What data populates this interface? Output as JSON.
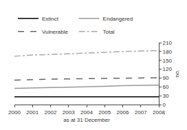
{
  "chart_data": {
    "type": "line",
    "x": [
      2000,
      2001,
      2002,
      2003,
      2004,
      2005,
      2006,
      2007,
      2008
    ],
    "xlabel": "as at 31 December",
    "ylabel": "no.",
    "xlim": [
      2000,
      2008
    ],
    "xticks": [
      2000,
      2001,
      2002,
      2003,
      2004,
      2005,
      2006,
      2007,
      2008
    ],
    "ylim": [
      0,
      210
    ],
    "yticks": [
      0,
      30,
      60,
      90,
      120,
      150,
      180,
      210
    ],
    "grid": false,
    "legend": "top",
    "series": [
      {
        "name": "Extinct",
        "color": "#000000",
        "line_style": "solid",
        "values": [
          26,
          26,
          26,
          26,
          26,
          26,
          26,
          26,
          26
        ]
      },
      {
        "name": "Endangered",
        "color": "#999999",
        "line_style": "solid",
        "values": [
          55,
          57,
          58,
          59,
          60,
          62,
          64,
          65,
          66
        ]
      },
      {
        "name": "Vulnerable",
        "color": "#666666",
        "line_style": "dashed",
        "values": [
          83,
          85,
          86,
          87,
          88,
          89,
          90,
          91,
          91
        ]
      },
      {
        "name": "Total",
        "color": "#aaaaaa",
        "line_style": "dashdot",
        "values": [
          164,
          168,
          170,
          172,
          174,
          177,
          180,
          182,
          183
        ]
      }
    ]
  }
}
